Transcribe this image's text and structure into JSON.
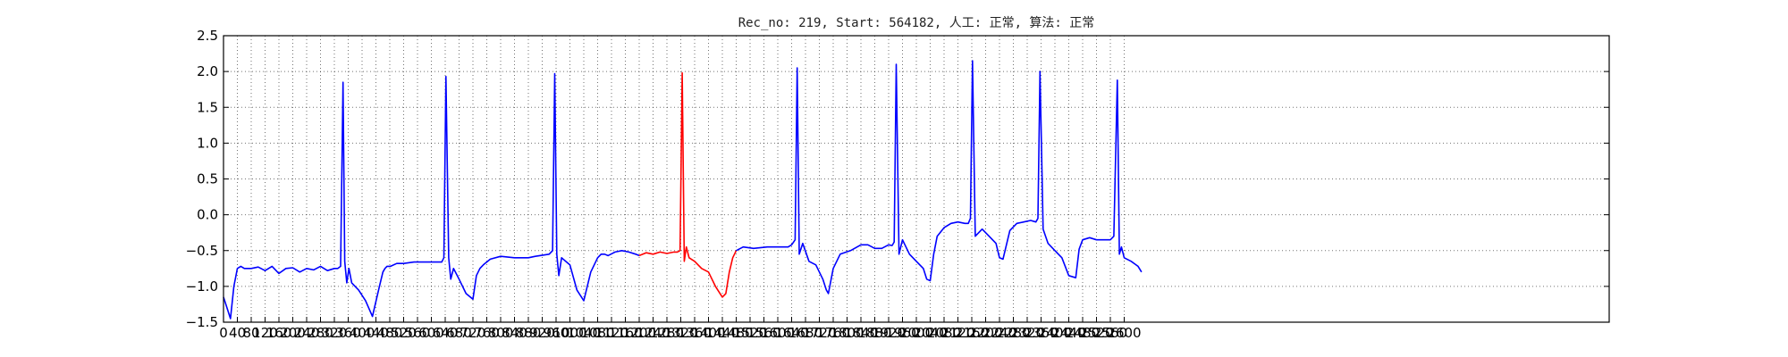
{
  "chart_data": {
    "type": "line",
    "title": "Rec_no: 219, Start: 564182, 人工: 正常, 算法: 正常",
    "xlabel": "",
    "ylabel": "",
    "ylim": [
      -1.5,
      2.5
    ],
    "xlim": [
      0,
      4000
    ],
    "grid": true,
    "ytick_labels": [
      "2.5",
      "2.0",
      "1.5",
      "1.0",
      "0.5",
      "0.0",
      "−0.5",
      "−1.0",
      "−1.5"
    ],
    "ytick_values": [
      2.5,
      2.0,
      1.5,
      1.0,
      0.5,
      0.0,
      -0.5,
      -1.0,
      -1.5
    ],
    "xtick_values": [
      0,
      40,
      80,
      120,
      160,
      200,
      240,
      280,
      320,
      360,
      400,
      440,
      480,
      520,
      560,
      600,
      640,
      680,
      720,
      760,
      800,
      840,
      880,
      920,
      960,
      1000,
      1040,
      1080,
      1120,
      1160,
      1200,
      1240,
      1280,
      1320,
      1360,
      1400,
      1440,
      1480,
      1520,
      1560,
      1600,
      1640,
      1680,
      1720,
      1760,
      1800,
      1840,
      1880,
      1920,
      1960,
      2000,
      2040,
      2080,
      2120,
      2160,
      2200,
      2240,
      2280,
      2320,
      2360,
      2400,
      2440,
      2480,
      2520,
      2560,
      2600
    ],
    "xtick_labels": [
      "0",
      "40",
      "80",
      "120",
      "160",
      "200",
      "240",
      "280",
      "320",
      "360",
      "400",
      "440",
      "480",
      "520",
      "560",
      "600",
      "640",
      "680",
      "720",
      "760",
      "800",
      "840",
      "880",
      "920",
      "960",
      "1000",
      "1040",
      "1080",
      "1120",
      "1160",
      "1200",
      "1240",
      "1280",
      "1320",
      "1360",
      "1400",
      "1440",
      "1480",
      "1520",
      "1560",
      "1600",
      "1640",
      "1680",
      "1720",
      "1760",
      "1800",
      "1840",
      "1880",
      "1920",
      "1960",
      "2000",
      "2040",
      "2080",
      "2120",
      "2160",
      "2200",
      "2240",
      "2280",
      "2320",
      "2360",
      "2400",
      "2440",
      "2480",
      "2520",
      "2560",
      "2600"
    ],
    "series": [
      {
        "color": "#0000ff",
        "x": [
          0,
          10,
          20,
          30,
          40,
          50,
          60,
          80,
          100,
          120,
          140,
          160,
          180,
          200,
          220,
          240,
          260,
          280,
          300,
          320,
          330,
          338,
          345,
          350,
          356,
          362,
          370,
          390,
          410,
          430,
          450,
          460,
          466,
          472,
          482,
          500,
          520,
          550,
          580,
          610,
          630,
          636,
          642,
          650,
          656,
          664,
          680,
          700,
          720,
          730,
          740,
          750,
          770,
          800,
          840,
          880,
          900,
          940,
          950,
          956,
          962,
          968,
          976,
          1000,
          1020,
          1040,
          1060,
          1080,
          1090,
          1100,
          1110,
          1130,
          1150,
          1170,
          1190,
          1200
        ],
        "y": [
          -1.15,
          -1.3,
          -1.45,
          -1.0,
          -0.75,
          -0.72,
          -0.75,
          -0.75,
          -0.73,
          -0.78,
          -0.72,
          -0.82,
          -0.75,
          -0.74,
          -0.8,
          -0.75,
          -0.77,
          -0.72,
          -0.78,
          -0.75,
          -0.75,
          -0.72,
          1.85,
          -0.65,
          -0.95,
          -0.75,
          -0.95,
          -1.05,
          -1.2,
          -1.42,
          -1.0,
          -0.8,
          -0.75,
          -0.72,
          -0.72,
          -0.68,
          -0.68,
          -0.66,
          -0.66,
          -0.66,
          -0.66,
          -0.6,
          1.93,
          -0.6,
          -0.9,
          -0.75,
          -0.9,
          -1.1,
          -1.18,
          -0.85,
          -0.75,
          -0.7,
          -0.62,
          -0.58,
          -0.6,
          -0.6,
          -0.58,
          -0.55,
          -0.5,
          1.97,
          -0.55,
          -0.85,
          -0.6,
          -0.7,
          -1.05,
          -1.2,
          -0.8,
          -0.6,
          -0.55,
          -0.55,
          -0.57,
          -0.52,
          -0.5,
          -0.52,
          -0.55,
          -0.57
        ]
      },
      {
        "color": "#ff0000",
        "x": [
          1200,
          1220,
          1240,
          1260,
          1280,
          1300,
          1310,
          1318,
          1324,
          1330,
          1336,
          1344,
          1360,
          1380,
          1400,
          1420,
          1440,
          1450,
          1460,
          1470,
          1480
        ],
        "y": [
          -0.57,
          -0.53,
          -0.55,
          -0.52,
          -0.54,
          -0.52,
          -0.52,
          -0.5,
          1.98,
          -0.65,
          -0.45,
          -0.6,
          -0.65,
          -0.75,
          -0.8,
          -1.0,
          -1.15,
          -1.1,
          -0.8,
          -0.6,
          -0.5
        ]
      },
      {
        "color": "#0000ff",
        "x": [
          1480,
          1500,
          1530,
          1570,
          1610,
          1630,
          1640,
          1650,
          1656,
          1662,
          1672,
          1690,
          1710,
          1730,
          1740,
          1746,
          1760,
          1780,
          1810,
          1840,
          1860,
          1880,
          1900,
          1920,
          1930,
          1936,
          1942,
          1950,
          1960,
          1980,
          2000,
          2020,
          2030,
          2040,
          2050,
          2060,
          2080,
          2100,
          2120,
          2140,
          2150,
          2156,
          2162,
          2170,
          2190,
          2210,
          2230,
          2240,
          2250,
          2270,
          2290,
          2310,
          2330,
          2345,
          2351,
          2357,
          2366,
          2380,
          2400,
          2420,
          2440,
          2460,
          2470,
          2480,
          2500,
          2520,
          2540,
          2560,
          2570,
          2580,
          2586,
          2592,
          2600,
          2620,
          2640,
          2650
        ],
        "y": [
          -0.5,
          -0.45,
          -0.47,
          -0.45,
          -0.45,
          -0.45,
          -0.42,
          -0.35,
          2.05,
          -0.55,
          -0.4,
          -0.65,
          -0.7,
          -0.9,
          -1.05,
          -1.1,
          -0.75,
          -0.55,
          -0.5,
          -0.42,
          -0.42,
          -0.47,
          -0.47,
          -0.42,
          -0.43,
          -0.38,
          2.1,
          -0.55,
          -0.35,
          -0.55,
          -0.65,
          -0.75,
          -0.9,
          -0.92,
          -0.55,
          -0.3,
          -0.18,
          -0.12,
          -0.1,
          -0.12,
          -0.12,
          -0.05,
          2.15,
          -0.3,
          -0.2,
          -0.3,
          -0.4,
          -0.6,
          -0.62,
          -0.22,
          -0.12,
          -0.1,
          -0.08,
          -0.1,
          -0.05,
          2.0,
          -0.2,
          -0.4,
          -0.5,
          -0.6,
          -0.85,
          -0.88,
          -0.48,
          -0.35,
          -0.32,
          -0.35,
          -0.35,
          -0.35,
          -0.3,
          1.88,
          -0.55,
          -0.45,
          -0.6,
          -0.65,
          -0.72,
          -0.8
        ]
      }
    ]
  }
}
